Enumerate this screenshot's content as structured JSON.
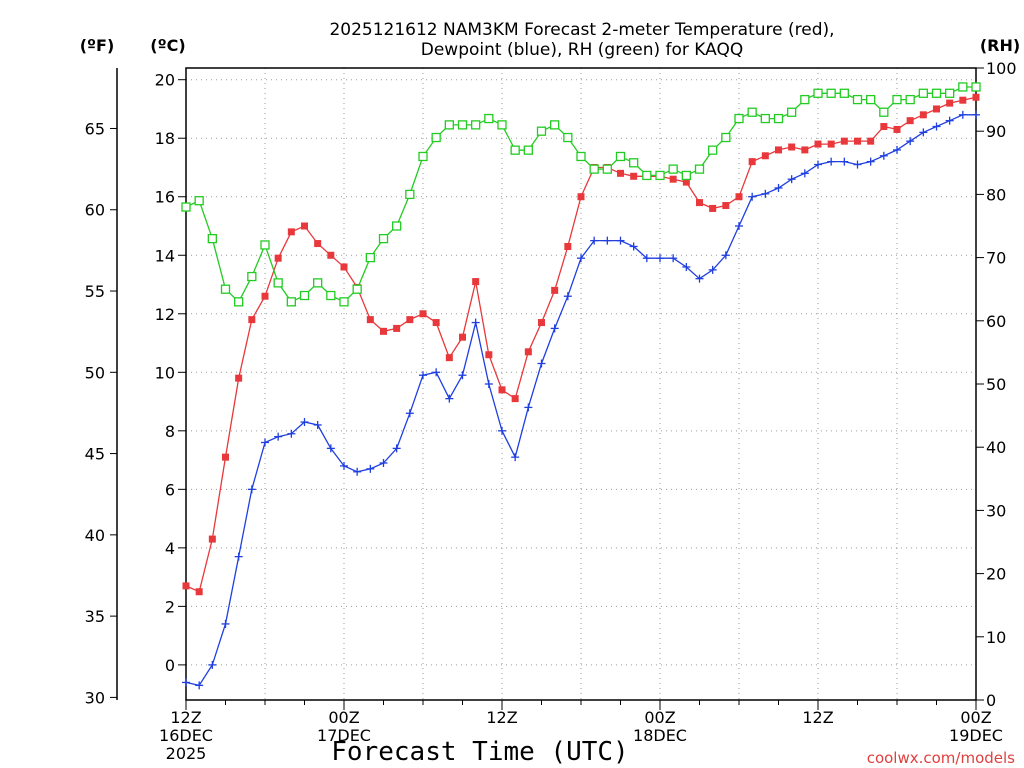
{
  "chart_data": {
    "type": "line",
    "title": [
      "2025121612 NAM3KM Forecast 2-meter Temperature (red),",
      "Dewpoint (blue), RH (green) for KAQQ"
    ],
    "xlabel": "Forecast Time (UTC)",
    "credit": "coolwx.com/models",
    "units": {
      "fahrenheit": "(ºF)",
      "celsius": "(ºC)",
      "rh": "(RH)"
    },
    "x_hours_range": [
      0,
      60
    ],
    "x_ticks": [
      {
        "hour": 0,
        "lines": [
          "12Z",
          "16DEC",
          "2025"
        ]
      },
      {
        "hour": 12,
        "lines": [
          "00Z",
          "17DEC"
        ]
      },
      {
        "hour": 24,
        "lines": [
          "12Z"
        ]
      },
      {
        "hour": 36,
        "lines": [
          "00Z",
          "18DEC"
        ]
      },
      {
        "hour": 48,
        "lines": [
          "12Z"
        ]
      },
      {
        "hour": 60,
        "lines": [
          "00Z",
          "19DEC"
        ]
      }
    ],
    "celsius_axis": {
      "range": [
        -1.2,
        20.4
      ],
      "ticks": [
        "0",
        "2",
        "4",
        "6",
        "8",
        "10",
        "12",
        "14",
        "16",
        "18",
        "20"
      ]
    },
    "fahrenheit_axis": {
      "range": [
        29.84,
        68.72
      ],
      "ticks": [
        "30",
        "35",
        "40",
        "45",
        "50",
        "55",
        "60",
        "65"
      ]
    },
    "rh_axis": {
      "range": [
        0,
        100
      ],
      "ticks": [
        "0",
        "10",
        "20",
        "30",
        "40",
        "50",
        "60",
        "70",
        "80",
        "90",
        "100"
      ]
    },
    "series": [
      {
        "name": "Temperature",
        "axis": "celsius",
        "color": "#e8383b",
        "marker": "filled-square",
        "hours": [
          0,
          1,
          2,
          3,
          4,
          5,
          6,
          7,
          8,
          9,
          10,
          11,
          12,
          13,
          14,
          15,
          16,
          17,
          18,
          19,
          20,
          21,
          22,
          23,
          24,
          25,
          26,
          27,
          28,
          29,
          30,
          31,
          32,
          33,
          34,
          35,
          36,
          37,
          38,
          39,
          40,
          41,
          42,
          43,
          44,
          45,
          46,
          47,
          48,
          49,
          50,
          51,
          52,
          53,
          54,
          55,
          56,
          57,
          58,
          59,
          60
        ],
        "values": [
          2.7,
          2.5,
          4.3,
          7.1,
          9.8,
          11.8,
          12.6,
          13.9,
          14.8,
          15.0,
          14.4,
          14.0,
          13.6,
          12.9,
          11.8,
          11.4,
          11.5,
          11.8,
          12.0,
          11.7,
          10.5,
          11.2,
          13.1,
          10.6,
          9.4,
          9.1,
          10.7,
          11.7,
          12.8,
          14.3,
          16.0,
          17.0,
          17.0,
          16.8,
          16.7,
          16.7,
          16.7,
          16.6,
          16.5,
          15.8,
          15.6,
          15.7,
          16.0,
          17.2,
          17.4,
          17.6,
          17.7,
          17.6,
          17.8,
          17.8,
          17.9,
          17.9,
          17.9,
          18.4,
          18.3,
          18.6,
          18.8,
          19.0,
          19.2,
          19.3,
          19.4
        ]
      },
      {
        "name": "Dewpoint",
        "axis": "celsius",
        "color": "#1f3fe0",
        "marker": "plus",
        "hours": [
          0,
          1,
          2,
          3,
          4,
          5,
          6,
          7,
          8,
          9,
          10,
          11,
          12,
          13,
          14,
          15,
          16,
          17,
          18,
          19,
          20,
          21,
          22,
          23,
          24,
          25,
          26,
          27,
          28,
          29,
          30,
          31,
          32,
          33,
          34,
          35,
          36,
          37,
          38,
          39,
          40,
          41,
          42,
          43,
          44,
          45,
          46,
          47,
          48,
          49,
          50,
          51,
          52,
          53,
          54,
          55,
          56,
          57,
          58,
          59,
          60
        ],
        "values": [
          -0.6,
          -0.7,
          0.0,
          1.4,
          3.7,
          6.0,
          7.6,
          7.8,
          7.9,
          8.3,
          8.2,
          7.4,
          6.8,
          6.6,
          6.7,
          6.9,
          7.4,
          8.6,
          9.9,
          10.0,
          9.1,
          9.9,
          11.7,
          9.6,
          8.0,
          7.1,
          8.8,
          10.3,
          11.5,
          12.6,
          13.9,
          14.5,
          14.5,
          14.5,
          14.3,
          13.9,
          13.9,
          13.9,
          13.6,
          13.2,
          13.5,
          14.0,
          15.0,
          16.0,
          16.1,
          16.3,
          16.6,
          16.8,
          17.1,
          17.2,
          17.2,
          17.1,
          17.2,
          17.4,
          17.6,
          17.9,
          18.2,
          18.4,
          18.6,
          18.8,
          18.8
        ]
      },
      {
        "name": "RH",
        "axis": "rh",
        "color": "#22cc22",
        "marker": "open-square",
        "hours": [
          0,
          1,
          2,
          3,
          4,
          5,
          6,
          7,
          8,
          9,
          10,
          11,
          12,
          13,
          14,
          15,
          16,
          17,
          18,
          19,
          20,
          21,
          22,
          23,
          24,
          25,
          26,
          27,
          28,
          29,
          30,
          31,
          32,
          33,
          34,
          35,
          36,
          37,
          38,
          39,
          40,
          41,
          42,
          43,
          44,
          45,
          46,
          47,
          48,
          49,
          50,
          51,
          52,
          53,
          54,
          55,
          56,
          57,
          58,
          59,
          60
        ],
        "values": [
          78,
          79,
          73,
          65,
          63,
          67,
          72,
          66,
          63,
          64,
          66,
          64,
          63,
          65,
          70,
          73,
          75,
          80,
          86,
          89,
          91,
          91,
          91,
          92,
          91,
          87,
          87,
          90,
          91,
          89,
          86,
          84,
          84,
          86,
          85,
          83,
          83,
          84,
          83,
          84,
          87,
          89,
          92,
          93,
          92,
          92,
          93,
          95,
          96,
          96,
          96,
          95,
          95,
          93,
          95,
          95,
          96,
          96,
          96,
          97,
          97
        ]
      }
    ]
  }
}
